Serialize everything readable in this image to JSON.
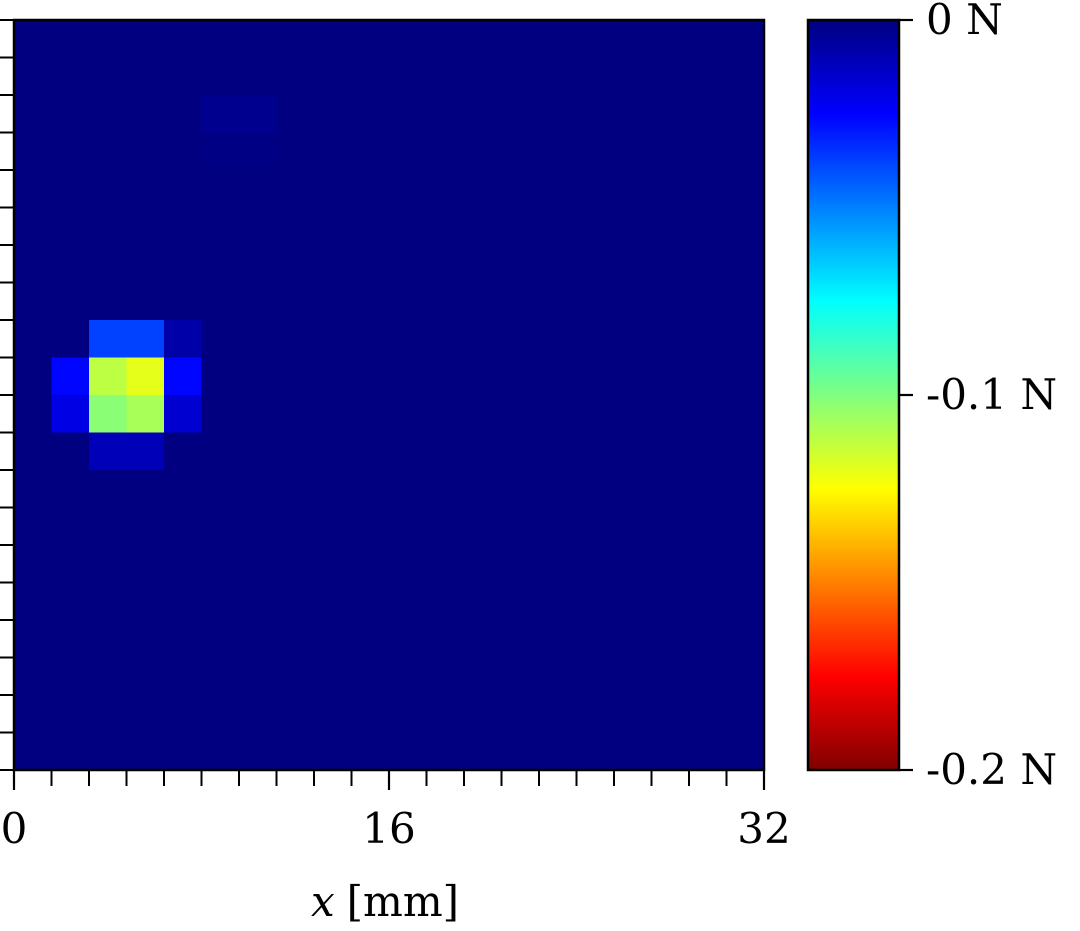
{
  "chart_data": {
    "type": "heatmap",
    "title": "",
    "xlabel_var": "x",
    "xlabel_unit": "[mm]",
    "ylabel": "",
    "xlim": [
      0,
      32
    ],
    "x_ticks": [
      {
        "value": 0,
        "label": "0"
      },
      {
        "value": 16,
        "label": "16"
      },
      {
        "value": 32,
        "label": "32"
      }
    ],
    "x_minor_tick_step": 1.6,
    "y_minor_tick_count": 20,
    "grid": false,
    "colormap": "jet",
    "colorbar": {
      "vmin": -0.2,
      "vmax": 0,
      "ticks": [
        {
          "value": 0,
          "label": "0 N"
        },
        {
          "value": -0.1,
          "label": "-0.1 N"
        },
        {
          "value": -0.2,
          "label": "-0.2 N"
        }
      ]
    },
    "grid_size": {
      "rows": 20,
      "cols": 20
    },
    "background_value": 0,
    "cells": [
      {
        "row": 2,
        "col": 5,
        "value": -0.003
      },
      {
        "row": 2,
        "col": 6,
        "value": -0.003
      },
      {
        "row": 3,
        "col": 5,
        "value": -0.001
      },
      {
        "row": 3,
        "col": 6,
        "value": -0.001
      },
      {
        "row": 8,
        "col": 2,
        "value": -0.038
      },
      {
        "row": 8,
        "col": 3,
        "value": -0.038
      },
      {
        "row": 8,
        "col": 4,
        "value": -0.008
      },
      {
        "row": 9,
        "col": 1,
        "value": -0.026
      },
      {
        "row": 9,
        "col": 2,
        "value": -0.112
      },
      {
        "row": 9,
        "col": 3,
        "value": -0.12
      },
      {
        "row": 9,
        "col": 4,
        "value": -0.026
      },
      {
        "row": 10,
        "col": 1,
        "value": -0.02
      },
      {
        "row": 10,
        "col": 2,
        "value": -0.102
      },
      {
        "row": 10,
        "col": 3,
        "value": -0.108
      },
      {
        "row": 10,
        "col": 4,
        "value": -0.016
      },
      {
        "row": 11,
        "col": 2,
        "value": -0.011
      },
      {
        "row": 11,
        "col": 3,
        "value": -0.011
      }
    ]
  }
}
